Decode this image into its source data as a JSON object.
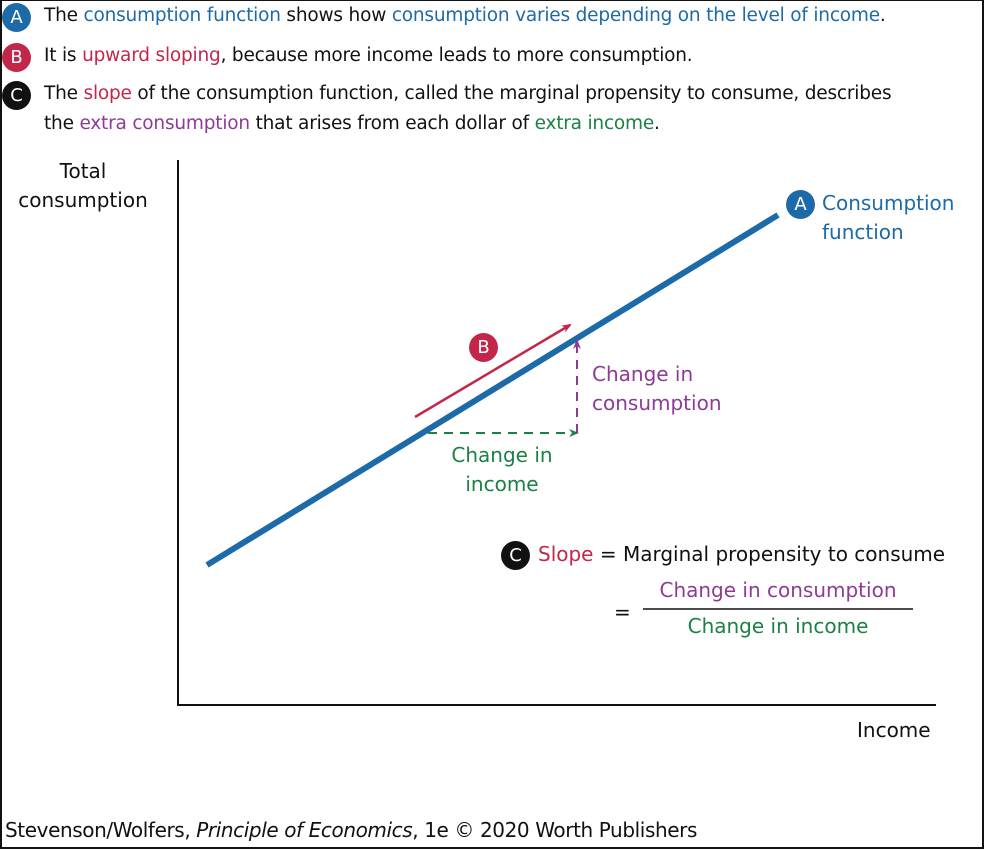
{
  "colors": {
    "blue": "#1d6aa8",
    "red": "#c4264a",
    "purple": "#8e3a96",
    "green": "#1b8145",
    "black": "#111111"
  },
  "notes": [
    {
      "badge": "A",
      "segments": [
        {
          "text": "The ",
          "color": "black"
        },
        {
          "text": "consumption function",
          "color": "blue"
        },
        {
          "text": " shows how ",
          "color": "black"
        },
        {
          "text": "consumption varies depending on the level of income",
          "color": "blue"
        },
        {
          "text": ".",
          "color": "black"
        }
      ]
    },
    {
      "badge": "B",
      "segments": [
        {
          "text": "It is ",
          "color": "black"
        },
        {
          "text": "upward sloping",
          "color": "red"
        },
        {
          "text": ", because more income leads to more consumption.",
          "color": "black"
        }
      ]
    },
    {
      "badge": "C",
      "segments": [
        {
          "text": "The ",
          "color": "black"
        },
        {
          "text": "slope",
          "color": "red"
        },
        {
          "text": " of the consumption function, called the marginal propensity to consume, describes",
          "color": "black"
        }
      ]
    },
    {
      "badge": "",
      "segments": [
        {
          "text": "the ",
          "color": "black"
        },
        {
          "text": "extra consumption",
          "color": "purple"
        },
        {
          "text": " that arises from each dollar of ",
          "color": "black"
        },
        {
          "text": "extra income",
          "color": "green"
        },
        {
          "text": ".",
          "color": "black"
        }
      ]
    }
  ],
  "diagram": {
    "y_axis_label": [
      "Total",
      "consumption"
    ],
    "x_axis_label": "Income",
    "line_label": {
      "badge": "A",
      "lines": [
        "Consumption",
        "function"
      ]
    },
    "upward_badge": "B",
    "change_consumption": [
      "Change in",
      "consumption"
    ],
    "change_income": [
      "Change in",
      "income"
    ],
    "formula": {
      "badge": "C",
      "slope": "Slope",
      "equals_text": " = Marginal propensity to consume",
      "eq": "=",
      "numerator": "Change in consumption",
      "denominator": "Change in income"
    }
  },
  "credit": {
    "prefix": "Stevenson/Wolfers, ",
    "title": "Principle of Economics",
    "suffix": ", 1e © 2020 Worth Publishers"
  }
}
